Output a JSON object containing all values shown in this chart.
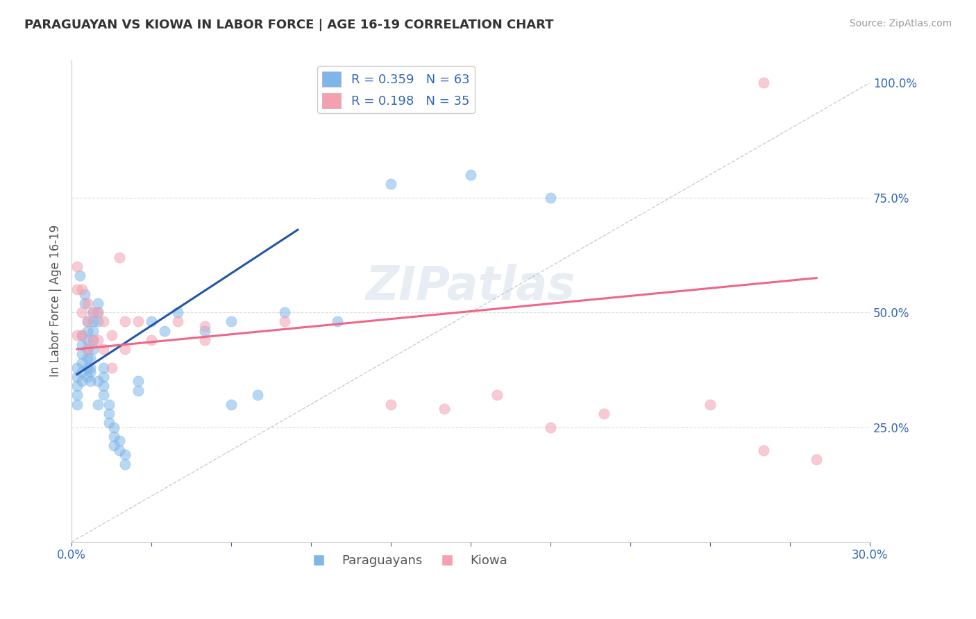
{
  "title": "PARAGUAYAN VS KIOWA IN LABOR FORCE | AGE 16-19 CORRELATION CHART",
  "source": "Source: ZipAtlas.com",
  "ylabel": "In Labor Force | Age 16-19",
  "xlim": [
    0.0,
    0.3
  ],
  "ylim": [
    0.0,
    1.05
  ],
  "paraguayan_R": 0.359,
  "paraguayan_N": 63,
  "kiowa_R": 0.198,
  "kiowa_N": 35,
  "blue_color": "#7EB6E8",
  "pink_color": "#F4A0B0",
  "blue_line_color": "#2255AA",
  "pink_line_color": "#EE6688",
  "diagonal_color": "#AABBCC",
  "watermark": "ZIPatlas",
  "paraguayan_x": [
    0.002,
    0.002,
    0.002,
    0.002,
    0.002,
    0.004,
    0.004,
    0.004,
    0.004,
    0.004,
    0.004,
    0.006,
    0.006,
    0.006,
    0.006,
    0.006,
    0.006,
    0.006,
    0.008,
    0.008,
    0.008,
    0.008,
    0.008,
    0.01,
    0.01,
    0.01,
    0.01,
    0.01,
    0.012,
    0.012,
    0.012,
    0.012,
    0.014,
    0.014,
    0.014,
    0.016,
    0.016,
    0.016,
    0.018,
    0.018,
    0.02,
    0.02,
    0.025,
    0.025,
    0.03,
    0.035,
    0.04,
    0.05,
    0.06,
    0.06,
    0.07,
    0.08,
    0.1,
    0.12,
    0.15,
    0.18,
    0.003,
    0.005,
    0.005,
    0.007,
    0.007,
    0.007,
    0.007
  ],
  "paraguayan_y": [
    0.38,
    0.36,
    0.34,
    0.32,
    0.3,
    0.45,
    0.43,
    0.41,
    0.39,
    0.37,
    0.35,
    0.48,
    0.46,
    0.44,
    0.42,
    0.4,
    0.38,
    0.36,
    0.5,
    0.48,
    0.46,
    0.44,
    0.42,
    0.52,
    0.5,
    0.48,
    0.35,
    0.3,
    0.38,
    0.36,
    0.34,
    0.32,
    0.3,
    0.28,
    0.26,
    0.25,
    0.23,
    0.21,
    0.22,
    0.2,
    0.19,
    0.17,
    0.35,
    0.33,
    0.48,
    0.46,
    0.5,
    0.46,
    0.48,
    0.3,
    0.32,
    0.5,
    0.48,
    0.78,
    0.8,
    0.75,
    0.58,
    0.54,
    0.52,
    0.4,
    0.38,
    0.37,
    0.35
  ],
  "kiowa_x": [
    0.002,
    0.002,
    0.002,
    0.004,
    0.004,
    0.004,
    0.006,
    0.006,
    0.006,
    0.008,
    0.008,
    0.01,
    0.01,
    0.012,
    0.012,
    0.015,
    0.015,
    0.018,
    0.02,
    0.02,
    0.025,
    0.03,
    0.04,
    0.05,
    0.05,
    0.08,
    0.12,
    0.14,
    0.16,
    0.18,
    0.2,
    0.24,
    0.26,
    0.26,
    0.28
  ],
  "kiowa_y": [
    0.6,
    0.55,
    0.45,
    0.55,
    0.5,
    0.45,
    0.52,
    0.48,
    0.42,
    0.5,
    0.44,
    0.5,
    0.44,
    0.48,
    0.42,
    0.45,
    0.38,
    0.62,
    0.48,
    0.42,
    0.48,
    0.44,
    0.48,
    0.47,
    0.44,
    0.48,
    0.3,
    0.29,
    0.32,
    0.25,
    0.28,
    0.3,
    1.0,
    0.2,
    0.18
  ],
  "blue_line_x": [
    0.002,
    0.085
  ],
  "blue_line_y": [
    0.365,
    0.68
  ],
  "pink_line_x": [
    0.002,
    0.28
  ],
  "pink_line_y": [
    0.42,
    0.575
  ]
}
